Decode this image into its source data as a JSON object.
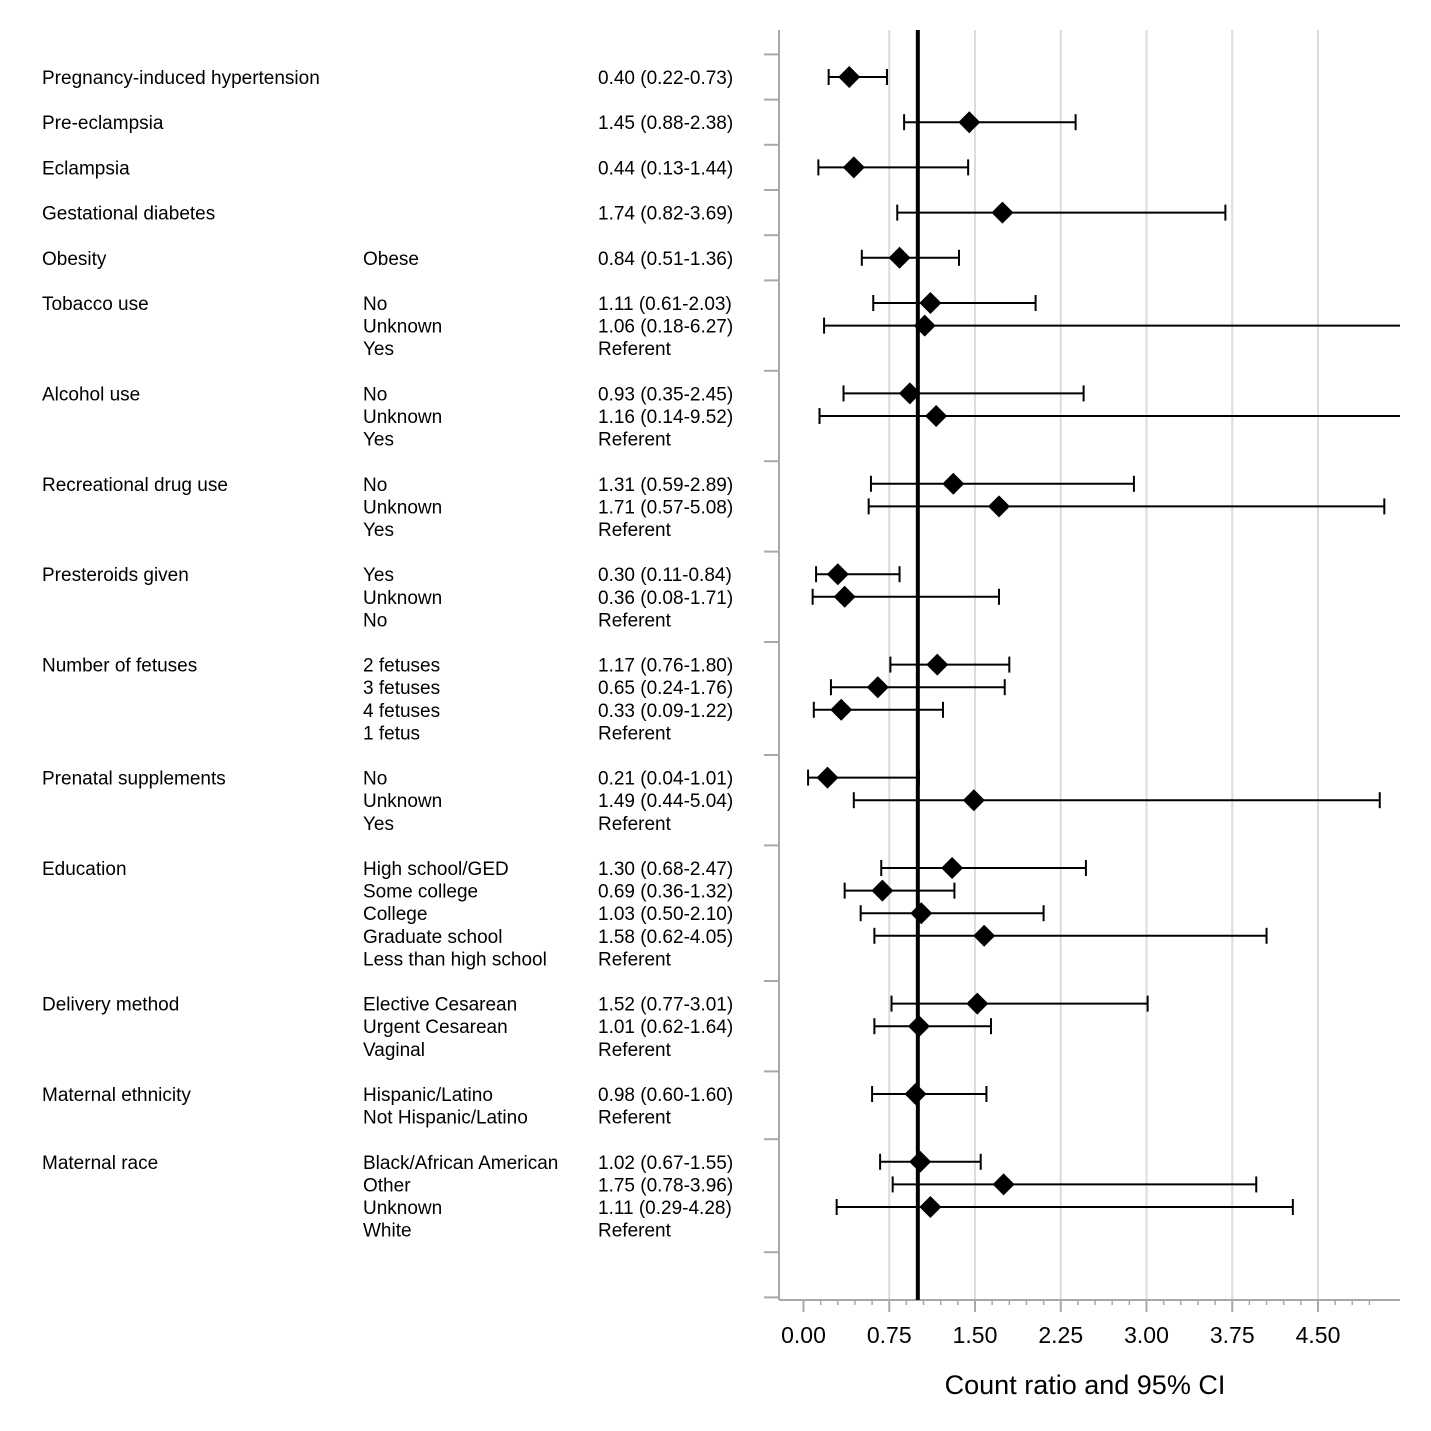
{
  "chart_data": {
    "type": "forest",
    "xlabel": "Count ratio and 95% CI",
    "xlim": [
      -0.22,
      5.2
    ],
    "xticks": [
      0.0,
      0.75,
      1.5,
      2.25,
      3.0,
      3.75,
      4.5
    ],
    "xtick_labels": [
      "0.00",
      "0.75",
      "1.50",
      "2.25",
      "3.00",
      "3.75",
      "4.50"
    ],
    "reference_line": 1.0,
    "vertical_gridlines": true,
    "marker": "diamond",
    "rows": [
      {
        "variable": "Pregnancy-induced hypertension",
        "level": "",
        "text": "0.40 (0.22-0.73)",
        "estimate": 0.4,
        "lower": 0.22,
        "upper": 0.73
      },
      {
        "variable": "Pre-eclampsia",
        "level": "",
        "text": "1.45 (0.88-2.38)",
        "estimate": 1.45,
        "lower": 0.88,
        "upper": 2.38
      },
      {
        "variable": "Eclampsia",
        "level": "",
        "text": "0.44 (0.13-1.44)",
        "estimate": 0.44,
        "lower": 0.13,
        "upper": 1.44
      },
      {
        "variable": "Gestational diabetes",
        "level": "",
        "text": "1.74 (0.82-3.69)",
        "estimate": 1.74,
        "lower": 0.82,
        "upper": 3.69
      },
      {
        "variable": "Obesity",
        "level": "Obese",
        "text": "0.84 (0.51-1.36)",
        "estimate": 0.84,
        "lower": 0.51,
        "upper": 1.36
      },
      {
        "variable": "Tobacco use",
        "level": "No",
        "text": "1.11 (0.61-2.03)",
        "estimate": 1.11,
        "lower": 0.61,
        "upper": 2.03
      },
      {
        "variable": "",
        "level": "Unknown",
        "text": "1.06 (0.18-6.27)",
        "estimate": 1.06,
        "lower": 0.18,
        "upper": 6.27
      },
      {
        "variable": "",
        "level": "Yes",
        "text": "Referent"
      },
      {
        "variable": "Alcohol use",
        "level": "No",
        "text": "0.93 (0.35-2.45)",
        "estimate": 0.93,
        "lower": 0.35,
        "upper": 2.45
      },
      {
        "variable": "",
        "level": "Unknown",
        "text": "1.16 (0.14-9.52)",
        "estimate": 1.16,
        "lower": 0.14,
        "upper": 9.52
      },
      {
        "variable": "",
        "level": "Yes",
        "text": "Referent"
      },
      {
        "variable": "Recreational drug use",
        "level": "No",
        "text": "1.31 (0.59-2.89)",
        "estimate": 1.31,
        "lower": 0.59,
        "upper": 2.89
      },
      {
        "variable": "",
        "level": "Unknown",
        "text": "1.71 (0.57-5.08)",
        "estimate": 1.71,
        "lower": 0.57,
        "upper": 5.08
      },
      {
        "variable": "",
        "level": "Yes",
        "text": "Referent"
      },
      {
        "variable": "Presteroids given",
        "level": "Yes",
        "text": "0.30 (0.11-0.84)",
        "estimate": 0.3,
        "lower": 0.11,
        "upper": 0.84
      },
      {
        "variable": "",
        "level": "Unknown",
        "text": "0.36 (0.08-1.71)",
        "estimate": 0.36,
        "lower": 0.08,
        "upper": 1.71
      },
      {
        "variable": "",
        "level": "No",
        "text": "Referent"
      },
      {
        "variable": "Number of fetuses",
        "level": "2 fetuses",
        "text": "1.17 (0.76-1.80)",
        "estimate": 1.17,
        "lower": 0.76,
        "upper": 1.8
      },
      {
        "variable": "",
        "level": "3 fetuses",
        "text": "0.65 (0.24-1.76)",
        "estimate": 0.65,
        "lower": 0.24,
        "upper": 1.76
      },
      {
        "variable": "",
        "level": "4 fetuses",
        "text": "0.33 (0.09-1.22)",
        "estimate": 0.33,
        "lower": 0.09,
        "upper": 1.22
      },
      {
        "variable": "",
        "level": "1 fetus",
        "text": "Referent"
      },
      {
        "variable": "Prenatal supplements",
        "level": "No",
        "text": "0.21 (0.04-1.01)",
        "estimate": 0.21,
        "lower": 0.04,
        "upper": 1.01
      },
      {
        "variable": "",
        "level": "Unknown",
        "text": "1.49 (0.44-5.04)",
        "estimate": 1.49,
        "lower": 0.44,
        "upper": 5.04
      },
      {
        "variable": "",
        "level": "Yes",
        "text": "Referent"
      },
      {
        "variable": "Education",
        "level": "High school/GED",
        "text": "1.30 (0.68-2.47)",
        "estimate": 1.3,
        "lower": 0.68,
        "upper": 2.47
      },
      {
        "variable": "",
        "level": "Some college",
        "text": "0.69 (0.36-1.32)",
        "estimate": 0.69,
        "lower": 0.36,
        "upper": 1.32
      },
      {
        "variable": "",
        "level": "College",
        "text": "1.03 (0.50-2.10)",
        "estimate": 1.03,
        "lower": 0.5,
        "upper": 2.1
      },
      {
        "variable": "",
        "level": "Graduate school",
        "text": "1.58 (0.62-4.05)",
        "estimate": 1.58,
        "lower": 0.62,
        "upper": 4.05
      },
      {
        "variable": "",
        "level": "Less than high school",
        "text": "Referent"
      },
      {
        "variable": "Delivery method",
        "level": "Elective Cesarean",
        "text": "1.52 (0.77-3.01)",
        "estimate": 1.52,
        "lower": 0.77,
        "upper": 3.01
      },
      {
        "variable": "",
        "level": "Urgent Cesarean",
        "text": "1.01 (0.62-1.64)",
        "estimate": 1.01,
        "lower": 0.62,
        "upper": 1.64
      },
      {
        "variable": "",
        "level": "Vaginal",
        "text": "Referent"
      },
      {
        "variable": "Maternal ethnicity",
        "level": "Hispanic/Latino",
        "text": "0.98 (0.60-1.60)",
        "estimate": 0.98,
        "lower": 0.6,
        "upper": 1.6
      },
      {
        "variable": "",
        "level": "Not Hispanic/Latino",
        "text": "Referent"
      },
      {
        "variable": "Maternal race",
        "level": "Black/African American",
        "text": "1.02 (0.67-1.55)",
        "estimate": 1.02,
        "lower": 0.67,
        "upper": 1.55
      },
      {
        "variable": "",
        "level": "Other",
        "text": "1.75 (0.78-3.96)",
        "estimate": 1.75,
        "lower": 0.78,
        "upper": 3.96
      },
      {
        "variable": "",
        "level": "Unknown",
        "text": "1.11 (0.29-4.28)",
        "estimate": 1.11,
        "lower": 0.29,
        "upper": 4.28
      },
      {
        "variable": "",
        "level": "White",
        "text": "Referent"
      }
    ]
  }
}
